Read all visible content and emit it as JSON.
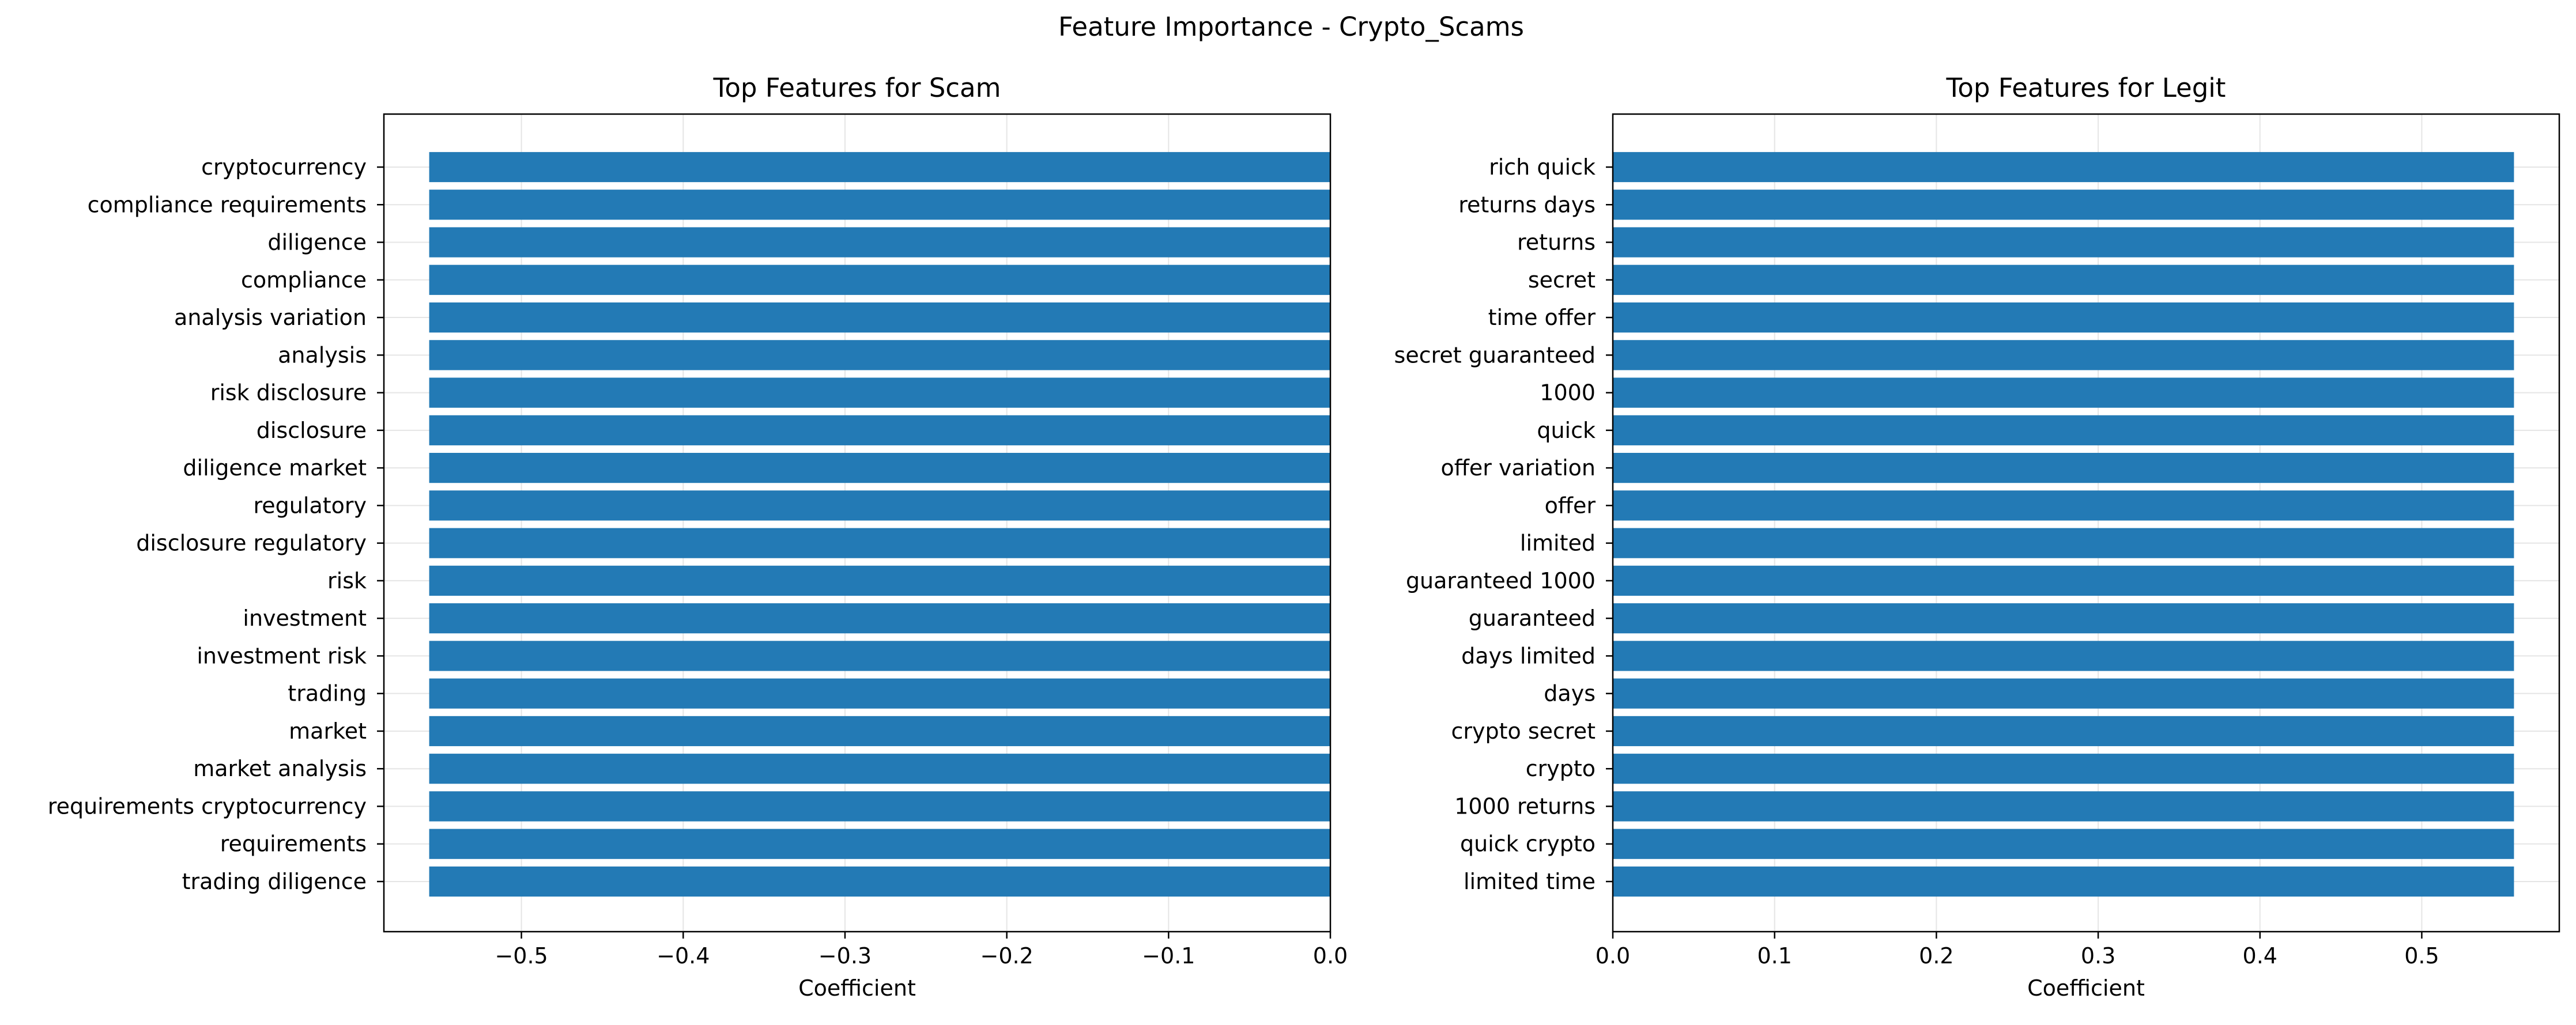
{
  "figure": {
    "suptitle": "Feature Importance - Crypto_Scams"
  },
  "style": {
    "bar_color": "#1f77b4",
    "grid_color": "#e5e5e5",
    "axis_color": "#000000"
  },
  "chart_data": [
    {
      "type": "bar",
      "orientation": "horizontal",
      "title": "Top Features for Scam",
      "xlabel": "Coefficient",
      "ylabel": "",
      "xlim": [
        -0.585,
        0.0
      ],
      "xticks": [
        -0.5,
        -0.4,
        -0.3,
        -0.2,
        -0.1,
        0.0
      ],
      "xtick_labels": [
        "−0.5",
        "−0.4",
        "−0.3",
        "−0.2",
        "−0.1",
        "0.0"
      ],
      "grid": true,
      "categories": [
        "cryptocurrency",
        "compliance requirements",
        "diligence",
        "compliance",
        "analysis variation",
        "analysis",
        "risk disclosure",
        "disclosure",
        "diligence market",
        "regulatory",
        "disclosure regulatory",
        "risk",
        "investment",
        "investment risk",
        "trading",
        "market",
        "market analysis",
        "requirements cryptocurrency",
        "requirements",
        "trading diligence"
      ],
      "values": [
        -0.557,
        -0.557,
        -0.557,
        -0.557,
        -0.557,
        -0.557,
        -0.557,
        -0.557,
        -0.557,
        -0.557,
        -0.557,
        -0.557,
        -0.557,
        -0.557,
        -0.557,
        -0.557,
        -0.557,
        -0.557,
        -0.557,
        -0.557
      ]
    },
    {
      "type": "bar",
      "orientation": "horizontal",
      "title": "Top Features for Legit",
      "xlabel": "Coefficient",
      "ylabel": "",
      "xlim": [
        0.0,
        0.585
      ],
      "xticks": [
        0.0,
        0.1,
        0.2,
        0.3,
        0.4,
        0.5
      ],
      "xtick_labels": [
        "0.0",
        "0.1",
        "0.2",
        "0.3",
        "0.4",
        "0.5"
      ],
      "grid": true,
      "categories": [
        "rich quick",
        "returns days",
        "returns",
        "secret",
        "time offer",
        "secret guaranteed",
        "1000",
        "quick",
        "offer variation",
        "offer",
        "limited",
        "guaranteed 1000",
        "guaranteed",
        "days limited",
        "days",
        "crypto secret",
        "crypto",
        "1000 returns",
        "quick crypto",
        "limited time"
      ],
      "values": [
        0.557,
        0.557,
        0.557,
        0.557,
        0.557,
        0.557,
        0.557,
        0.557,
        0.557,
        0.557,
        0.557,
        0.557,
        0.557,
        0.557,
        0.557,
        0.557,
        0.557,
        0.557,
        0.557,
        0.557
      ]
    }
  ]
}
